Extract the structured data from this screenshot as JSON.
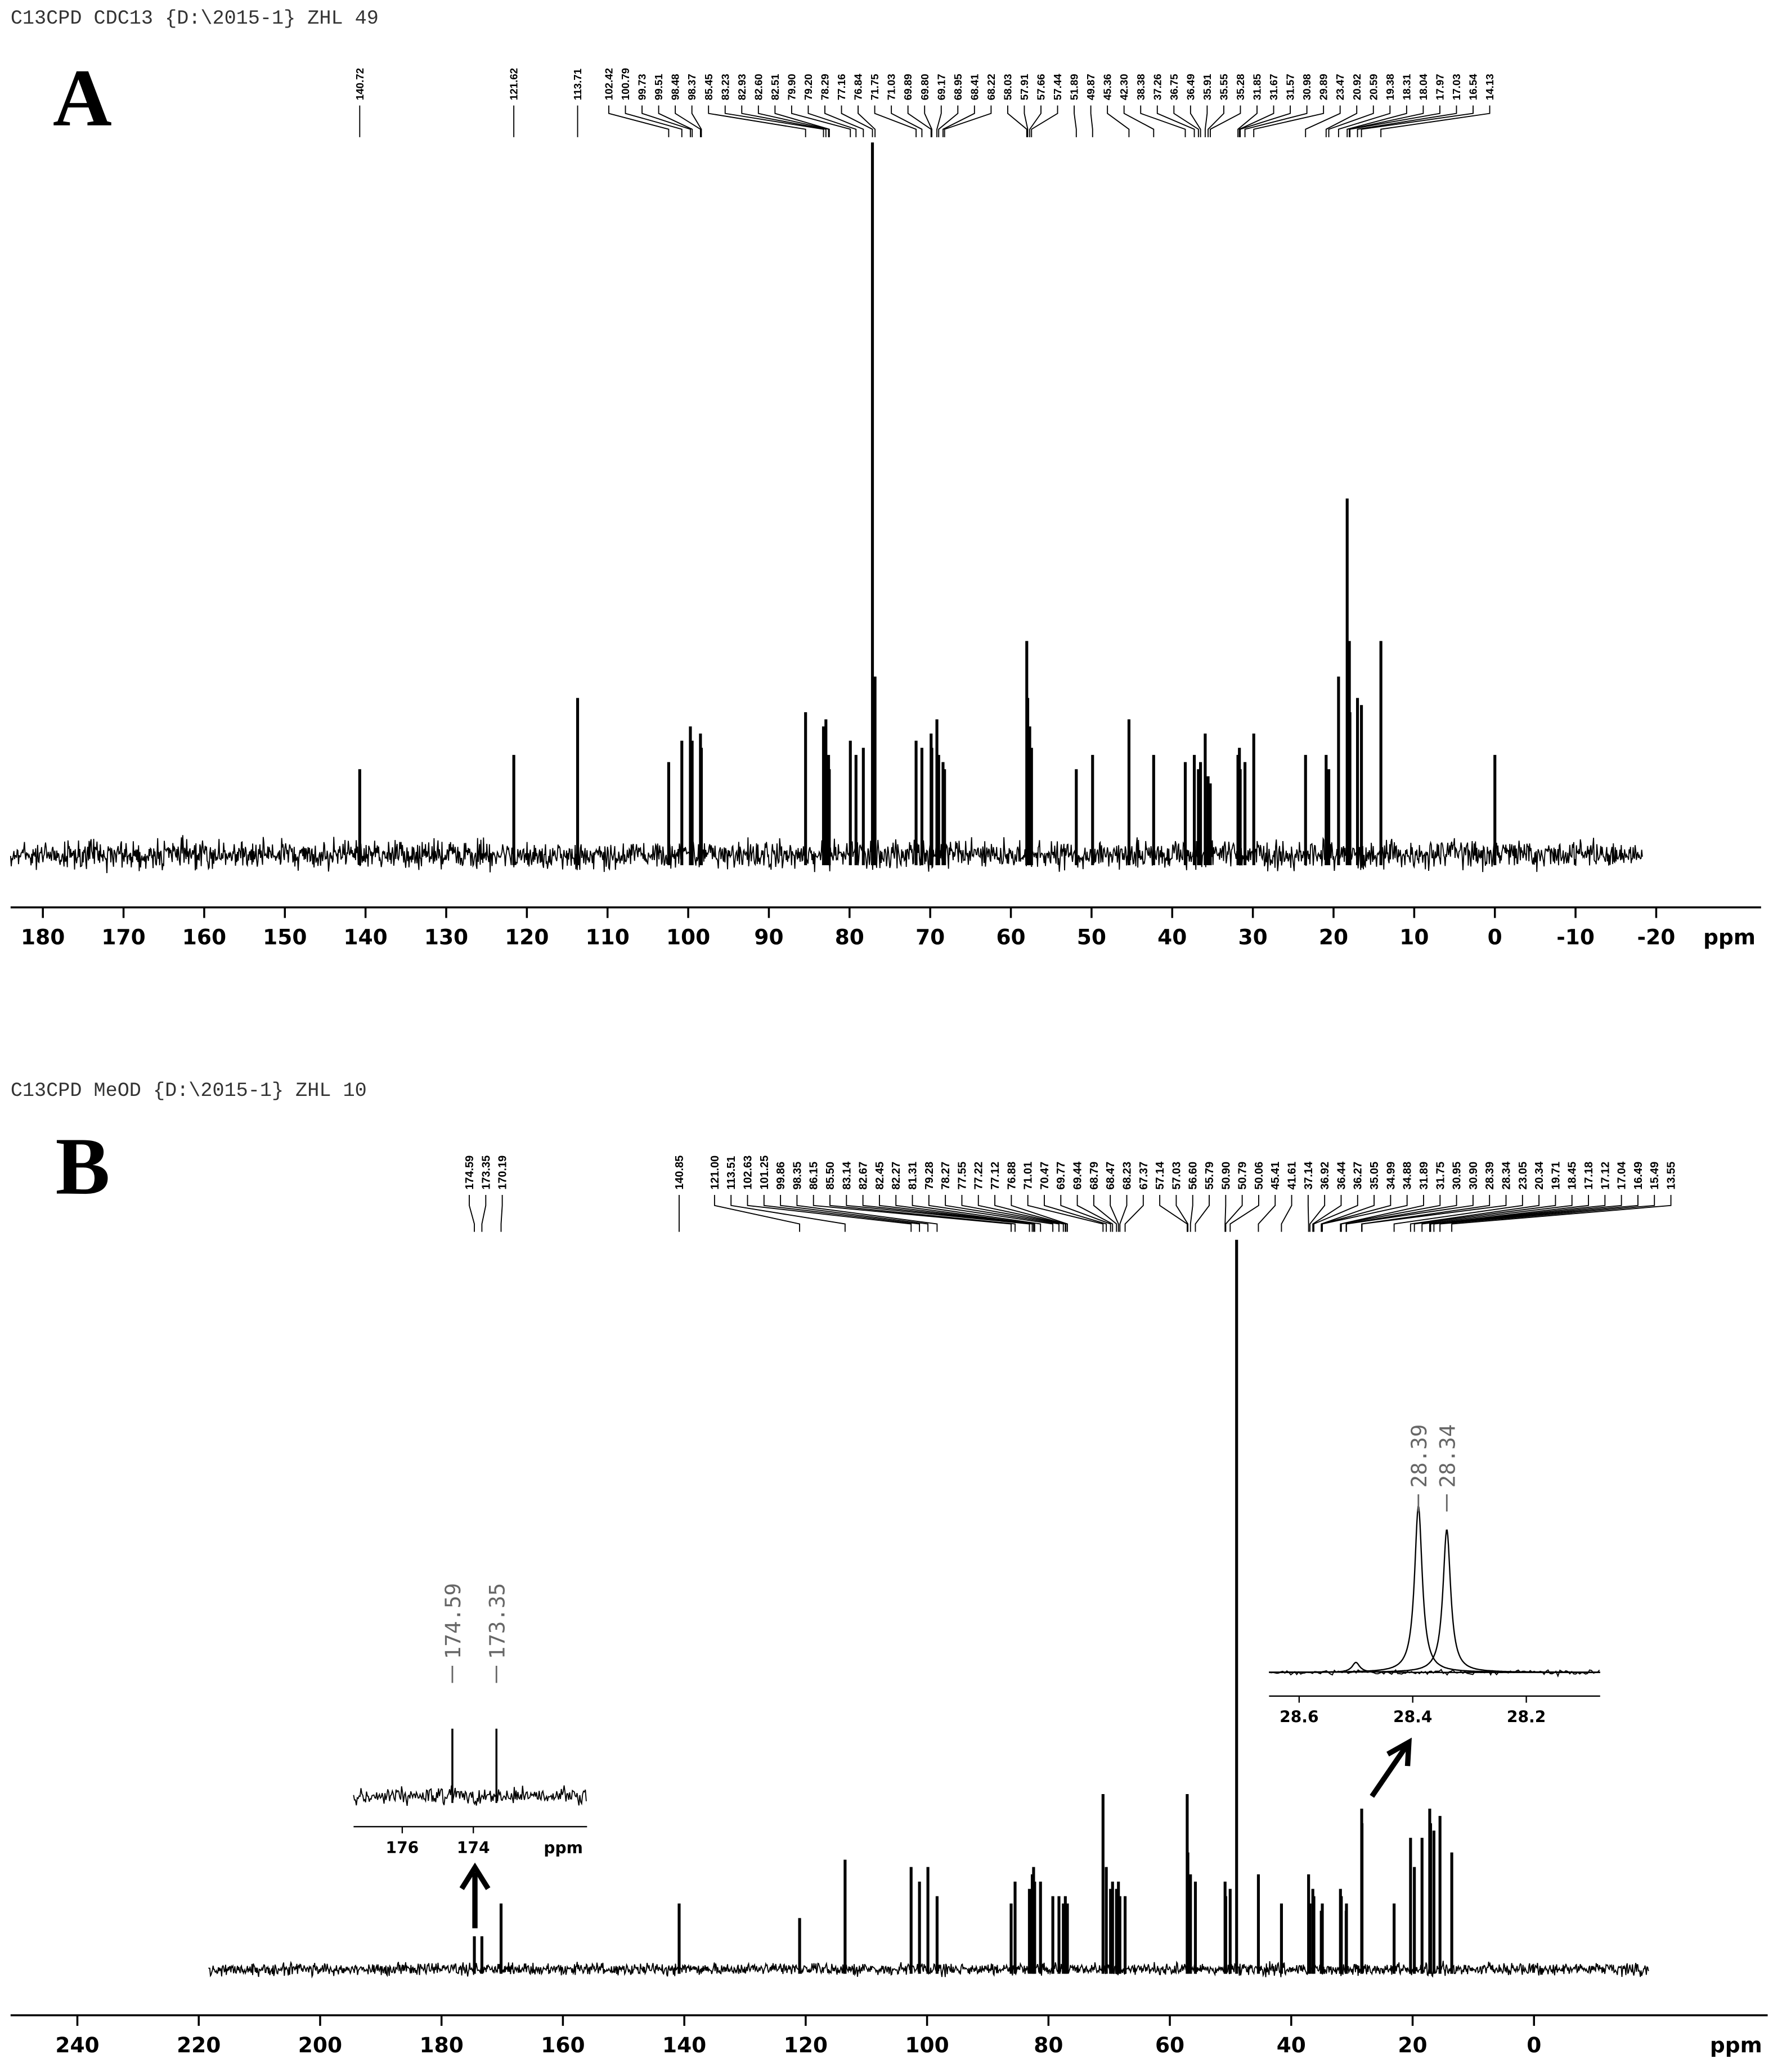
{
  "chart_data": [
    {
      "type": "spectrum",
      "header": "C13CPD CDC13 {D:\\2015-1} ZHL 49",
      "panel": "A",
      "axis_label": "ppm",
      "xlim": [
        184,
        -33
      ],
      "xticks": [
        180,
        170,
        160,
        150,
        140,
        130,
        120,
        110,
        100,
        90,
        80,
        70,
        60,
        50,
        40,
        30,
        20,
        10,
        0,
        -10,
        -20
      ],
      "ylim": [
        0,
        100
      ],
      "color": "#000000",
      "peaks": [
        140.72,
        121.62,
        113.71,
        102.42,
        100.79,
        99.73,
        99.51,
        98.48,
        98.37,
        85.45,
        83.23,
        82.93,
        82.6,
        82.51,
        79.9,
        79.2,
        78.29,
        77.16,
        76.84,
        71.75,
        71.03,
        69.89,
        69.8,
        69.17,
        68.95,
        68.41,
        68.22,
        58.03,
        57.91,
        57.66,
        57.44,
        51.89,
        49.87,
        45.36,
        42.3,
        38.38,
        37.26,
        36.75,
        36.49,
        35.91,
        35.55,
        35.28,
        31.85,
        31.67,
        31.57,
        30.98,
        29.89,
        23.47,
        20.92,
        20.59,
        19.38,
        18.31,
        18.04,
        17.97,
        17.03,
        16.54,
        14.13,
        0
      ],
      "peak_labels": [
        "140.72",
        "121.62",
        "113.71",
        "102.42",
        "100.79",
        "99.73",
        "99.51",
        "98.48",
        "98.37",
        "85.45",
        "83.23",
        "82.93",
        "82.60",
        "82.51",
        "79.90",
        "79.20",
        "78.29",
        "77.16",
        "76.84",
        "71.75",
        "71.03",
        "69.89",
        "69.80",
        "69.17",
        "68.95",
        "68.41",
        "68.22",
        "58.03",
        "57.91",
        "57.66",
        "57.44",
        "51.89",
        "49.87",
        "45.36",
        "42.30",
        "38.38",
        "37.26",
        "36.75",
        "36.49",
        "35.91",
        "35.55",
        "35.28",
        "31.85",
        "31.67",
        "31.57",
        "30.98",
        "29.89",
        "23.47",
        "20.92",
        "20.59",
        "19.38",
        "18.31",
        "18.04",
        "17.97",
        "17.03",
        "16.54",
        "14.13",
        null
      ],
      "intensities": [
        12,
        14,
        22,
        13,
        16,
        18,
        16,
        17,
        15,
        20,
        18,
        19,
        14,
        12,
        16,
        14,
        15,
        100,
        25,
        16,
        15,
        17,
        15,
        19,
        14,
        13,
        12,
        30,
        22,
        18,
        15,
        12,
        14,
        19,
        14,
        13,
        14,
        12,
        13,
        17,
        11,
        10,
        14,
        15,
        12,
        13,
        17,
        14,
        14,
        12,
        25,
        50,
        30,
        20,
        22,
        21,
        30,
        14
      ]
    },
    {
      "type": "spectrum",
      "header": "C13CPD MeOD {D:\\2015-1} ZHL 10",
      "panel": "B",
      "axis_label": "ppm",
      "xlim": [
        251,
        -38.5
      ],
      "xticks": [
        240,
        220,
        200,
        180,
        160,
        140,
        120,
        100,
        80,
        60,
        40,
        20,
        0
      ],
      "ylim": [
        0,
        100
      ],
      "color": "#000000",
      "peaks": [
        174.59,
        173.35,
        170.19,
        140.85,
        121.0,
        113.51,
        102.63,
        101.25,
        99.86,
        98.35,
        86.15,
        85.5,
        83.14,
        82.67,
        82.45,
        82.27,
        81.31,
        79.28,
        78.27,
        77.55,
        77.22,
        77.12,
        76.88,
        71.01,
        70.47,
        69.77,
        69.44,
        68.79,
        68.47,
        68.23,
        67.37,
        57.14,
        57.03,
        56.6,
        55.79,
        50.9,
        50.79,
        50.06,
        49.0,
        45.41,
        41.61,
        37.14,
        36.92,
        36.44,
        36.27,
        35.05,
        34.99,
        34.88,
        31.89,
        31.75,
        30.95,
        30.9,
        28.39,
        28.34,
        23.05,
        20.34,
        19.71,
        18.45,
        17.18,
        17.12,
        17.04,
        16.49,
        15.49,
        13.55
      ],
      "peak_labels": [
        "174.59",
        "173.35",
        "170.19",
        "140.85",
        "121.00",
        "113.51",
        "102.63",
        "101.25",
        "99.86",
        "98.35",
        "86.15",
        "85.50",
        "83.14",
        "82.67",
        "82.45",
        "82.27",
        "81.31",
        "79.28",
        "78.27",
        "77.55",
        "77.22",
        "77.12",
        "76.88",
        "71.01",
        "70.47",
        "69.77",
        "69.44",
        "68.79",
        "68.47",
        "68.23",
        "67.37",
        "57.14",
        "57.03",
        "56.60",
        "55.79",
        "50.90",
        "50.79",
        "50.06",
        null,
        "45.41",
        "41.61",
        "37.14",
        "36.92",
        "36.44",
        "36.27",
        "35.05",
        "34.99",
        "34.88",
        "31.89",
        "31.75",
        "30.95",
        "30.90",
        "28.39",
        "28.34",
        "23.05",
        "20.34",
        "19.71",
        "18.45",
        "17.18",
        "17.12",
        "17.04",
        "16.49",
        "15.49",
        "13.55"
      ],
      "intensities": [
        4.5,
        4.5,
        9,
        9,
        7,
        15,
        14,
        12,
        14,
        10,
        9,
        12,
        11,
        13,
        14,
        12,
        12,
        10,
        10,
        9,
        10,
        9,
        9,
        24,
        14,
        11,
        12,
        11,
        12,
        10,
        10,
        24,
        16,
        13,
        12,
        12,
        10,
        11,
        100,
        13,
        9,
        13,
        9,
        11,
        10,
        8,
        7,
        9,
        11,
        10,
        8,
        9,
        22,
        20,
        9,
        18,
        14,
        18,
        22,
        16,
        20,
        19,
        21,
        16
      ],
      "insets": [
        {
          "peak_shape": "stick",
          "axis_label": "ppm",
          "xlim": [
            177.37,
            170.8
          ],
          "xticks": [
            176,
            174
          ],
          "ylim": [
            0,
            100
          ],
          "peaks": [
            174.59,
            173.35
          ],
          "peak_labels": [
            "174.59",
            "173.35"
          ],
          "intensities": [
            95,
            95
          ]
        },
        {
          "peak_shape": "lorentzian",
          "xlim": [
            28.653,
            28.07
          ],
          "xticks": [
            28.6,
            28.4,
            28.2
          ],
          "ylim": [
            0,
            100
          ],
          "peaks": [
            28.5,
            28.39,
            28.34
          ],
          "peak_labels": [
            null,
            "28.39",
            "28.34"
          ],
          "intensities": [
            6,
            100,
            86
          ]
        }
      ]
    }
  ]
}
